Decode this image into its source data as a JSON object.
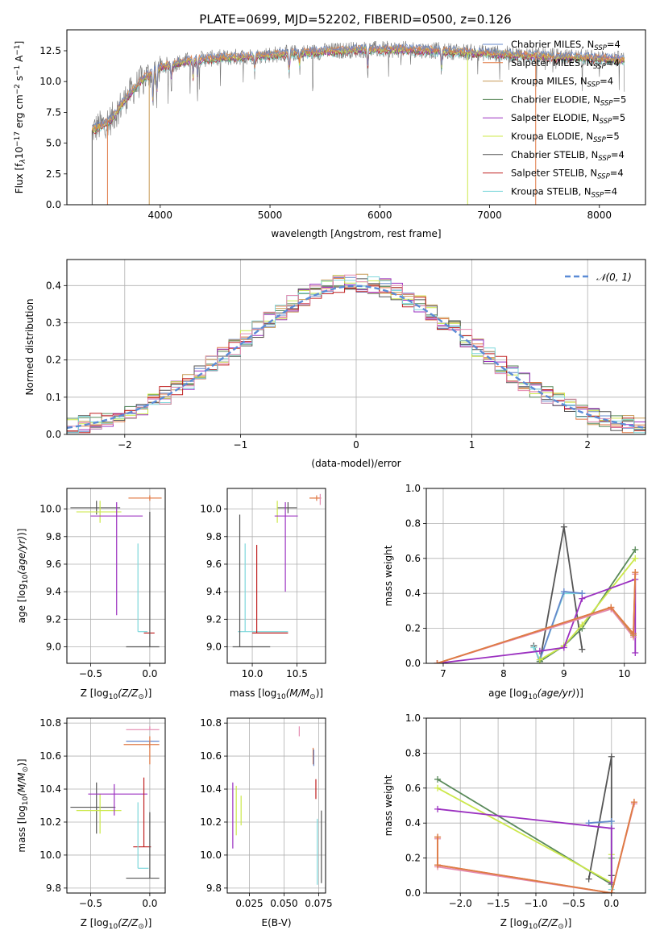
{
  "figure": {
    "title": "PLATE=0699, MJD=52202, FIBERID=0500, z=0.126",
    "colors": {
      "Chabrier MILES": "#6688cc",
      "Salpeter MILES": "#e07a45",
      "Kroupa MILES": "#c79a55",
      "Chabrier ELODIE": "#5a8a5a",
      "Salpeter ELODIE": "#9b30c0",
      "Kroupa ELODIE": "#cce84a",
      "Chabrier STELIB": "#555555",
      "Salpeter STELIB": "#c02020",
      "Kroupa STELIB": "#7fd8dc"
    }
  },
  "chart_data": [
    {
      "id": "spectrum",
      "type": "line",
      "xlabel": "wavelength [Angstrom, rest frame]",
      "ylabel_main": "Flux [f",
      "ylabel_sub": "λ",
      "ylabel_10": "10",
      "ylabel_exp1": "−17",
      "ylabel_unit": " erg cm",
      "ylabel_exp2": "−2",
      "ylabel_s": " s",
      "ylabel_exp3": "−1",
      "ylabel_A": " A",
      "ylabel_exp4": "−1",
      "ylabel_close": "]",
      "xlim": [
        3150,
        8420
      ],
      "ylim": [
        0,
        14.2
      ],
      "xticks": [
        "4000",
        "5000",
        "6000",
        "7000",
        "8000"
      ],
      "yticks": [
        "0.0",
        "2.5",
        "5.0",
        "7.5",
        "10.0",
        "12.5"
      ],
      "legend": [
        {
          "pre": "Chabrier MILES, N",
          "sub": "SSP",
          "post": "=4",
          "color": "#6688cc"
        },
        {
          "pre": "Salpeter MILES, N",
          "sub": "SSP",
          "post": "=4",
          "color": "#e07a45"
        },
        {
          "pre": "Kroupa MILES, N",
          "sub": "SSP",
          "post": "=4",
          "color": "#c79a55"
        },
        {
          "pre": "Chabrier ELODIE, N",
          "sub": "SSP",
          "post": "=5",
          "color": "#5a8a5a"
        },
        {
          "pre": "Salpeter ELODIE, N",
          "sub": "SSP",
          "post": "=5",
          "color": "#9b30c0"
        },
        {
          "pre": "Kroupa ELODIE, N",
          "sub": "SSP",
          "post": "=5",
          "color": "#cce84a"
        },
        {
          "pre": "Chabrier STELIB, N",
          "sub": "SSP",
          "post": "=4",
          "color": "#555555"
        },
        {
          "pre": "Salpeter STELIB, N",
          "sub": "SSP",
          "post": "=4",
          "color": "#c02020"
        },
        {
          "pre": "Kroupa STELIB, N",
          "sub": "SSP",
          "post": "=4",
          "color": "#7fd8dc"
        }
      ],
      "continuum": [
        [
          3350,
          5.9
        ],
        [
          3550,
          6.9
        ],
        [
          3700,
          8.8
        ],
        [
          3850,
          10.3
        ],
        [
          4000,
          11.2
        ],
        [
          4300,
          11.8
        ],
        [
          4700,
          12.0
        ],
        [
          5200,
          12.3
        ],
        [
          5800,
          12.6
        ],
        [
          6300,
          12.6
        ],
        [
          6800,
          12.4
        ],
        [
          7400,
          12.1
        ],
        [
          8000,
          11.9
        ],
        [
          8200,
          11.8
        ]
      ],
      "absorptions": [
        [
          3934,
          3.5
        ],
        [
          3969,
          3.0
        ],
        [
          4102,
          1.8
        ],
        [
          4300,
          2.0
        ],
        [
          4340,
          1.8
        ],
        [
          4861,
          1.5
        ],
        [
          5175,
          2.2
        ],
        [
          5270,
          1.3
        ],
        [
          5890,
          2.0
        ],
        [
          6563,
          1.8
        ],
        [
          7600,
          0.5
        ]
      ],
      "cutoffs": [
        {
          "x": 3380,
          "color": "#555555"
        },
        {
          "x": 3520,
          "color": "#e07a45"
        },
        {
          "x": 3900,
          "color": "#c79a55"
        },
        {
          "x": 6800,
          "color": "#cce84a"
        },
        {
          "x": 7420,
          "color": "#e07a45"
        }
      ]
    },
    {
      "id": "residuals",
      "type": "step",
      "xlabel": "(data-model)/error",
      "ylabel": "Normed distribution",
      "xlim": [
        -2.5,
        2.5
      ],
      "ylim": [
        0,
        0.47
      ],
      "xticks": [
        "−2",
        "−1",
        "0",
        "1",
        "2"
      ],
      "yticks": [
        "0.0",
        "0.1",
        "0.2",
        "0.3",
        "0.4"
      ],
      "legend_label": "𝒩(0, 1)",
      "legend_color": "#5b8bd6",
      "bin_width": 0.1
    },
    {
      "id": "age_vs_z",
      "type": "scatter",
      "xlabel_pre": "Z [log",
      "xlabel_sub": "10",
      "xlabel_post": "(Z/Z",
      "xlabel_sun": "⊙",
      "xlabel_close": ")]",
      "ylabel": "age  [log10(age/yr)]",
      "xlim": [
        -0.7,
        0.13
      ],
      "ylim": [
        8.88,
        10.15
      ],
      "xticks": [
        "−0.5",
        "0.0"
      ],
      "yticks": [
        "9.0",
        "9.2",
        "9.4",
        "9.6",
        "9.8",
        "10.0"
      ],
      "points": [
        {
          "x": 0.0,
          "y": 10.08,
          "ex": [
            0.18,
            0.1
          ],
          "ey": [
            0.02,
            0.02
          ],
          "c": "#e07a45"
        },
        {
          "x": -0.45,
          "y": 10.01,
          "ex": [
            0.22,
            0.2
          ],
          "ey": [
            0.05,
            0.05
          ],
          "c": "#555555"
        },
        {
          "x": -0.42,
          "y": 9.98,
          "ex": [
            0.2,
            0.18
          ],
          "ey": [
            0.08,
            0.08
          ],
          "c": "#cce84a"
        },
        {
          "x": -0.28,
          "y": 9.95,
          "ex": [
            0.22,
            0.22
          ],
          "ey": [
            0.72,
            0.1
          ],
          "c": "#9b30c0"
        },
        {
          "x": -0.1,
          "y": 9.11,
          "ex": [
            0.0,
            0.08
          ],
          "ey": [
            0.0,
            0.64
          ],
          "c": "#7fd8dc"
        },
        {
          "x": -0.05,
          "y": 9.1,
          "ex": [
            0.0,
            0.09
          ],
          "ey": [
            0.0,
            0.0
          ],
          "c": "#c02020"
        },
        {
          "x": 0.0,
          "y": 9.0,
          "ex": [
            0.2,
            0.08
          ],
          "ey": [
            0.0,
            0.98
          ],
          "c": "#555555"
        }
      ]
    },
    {
      "id": "age_vs_mass",
      "type": "scatter",
      "xlabel_pre": "mass [log",
      "xlabel_sub": "10",
      "xlabel_post": "(M/M",
      "xlabel_sun": "⊙",
      "xlabel_close": ")]",
      "ylabel": "",
      "xlim": [
        9.72,
        10.82
      ],
      "ylim": [
        8.88,
        10.15
      ],
      "xticks": [
        "10.0",
        "10.5"
      ],
      "yticks": [
        "9.0",
        "9.2",
        "9.4",
        "9.6",
        "9.8",
        "10.0"
      ],
      "points": [
        {
          "x": 10.72,
          "y": 10.08,
          "ex": [
            0.08,
            0.05
          ],
          "ey": [
            0.02,
            0.02
          ],
          "c": "#e07a45"
        },
        {
          "x": 10.76,
          "y": 10.07,
          "ex": [
            0.0,
            0.0
          ],
          "ey": [
            0.04,
            0.04
          ],
          "c": "#e58ab0"
        },
        {
          "x": 10.4,
          "y": 10.01,
          "ex": [
            0.12,
            0.1
          ],
          "ey": [
            0.04,
            0.04
          ],
          "c": "#555555"
        },
        {
          "x": 10.28,
          "y": 10.0,
          "ex": [
            0.0,
            0.0
          ],
          "ey": [
            0.1,
            0.06
          ],
          "c": "#cce84a"
        },
        {
          "x": 10.37,
          "y": 9.95,
          "ex": [
            0.12,
            0.14
          ],
          "ey": [
            0.55,
            0.1
          ],
          "c": "#9b30c0"
        },
        {
          "x": 9.92,
          "y": 9.11,
          "ex": [
            0.08,
            0.48
          ],
          "ey": [
            0.0,
            0.64
          ],
          "c": "#7fd8dc"
        },
        {
          "x": 10.05,
          "y": 9.1,
          "ex": [
            0.05,
            0.35
          ],
          "ey": [
            0.0,
            0.64
          ],
          "c": "#c02020"
        },
        {
          "x": 9.86,
          "y": 9.0,
          "ex": [
            0.08,
            0.34
          ],
          "ey": [
            0.0,
            0.96
          ],
          "c": "#555555"
        }
      ]
    },
    {
      "id": "weight_vs_age",
      "type": "line",
      "xlabel": "age  [log10(age/yr)]",
      "ylabel": "mass weight",
      "xlim": [
        6.72,
        10.35
      ],
      "ylim": [
        0,
        1.0
      ],
      "xticks": [
        "7",
        "8",
        "9",
        "10"
      ],
      "yticks": [
        "0.0",
        "0.2",
        "0.4",
        "0.6",
        "0.8",
        "1.0"
      ],
      "series": [
        {
          "c": "#555555",
          "x": [
            8.5,
            8.6,
            9.0,
            9.3
          ],
          "y": [
            0.1,
            0.01,
            0.78,
            0.08
          ]
        },
        {
          "c": "#7fd8dc",
          "x": [
            8.5,
            8.6,
            9.0,
            9.3
          ],
          "y": [
            0.09,
            0.02,
            0.4,
            0.4
          ]
        },
        {
          "c": "#6688cc",
          "x": [
            8.6,
            9.0,
            9.3
          ],
          "y": [
            0.02,
            0.41,
            0.4
          ]
        },
        {
          "c": "#5a8a5a",
          "x": [
            8.6,
            9.0,
            9.3,
            10.18
          ],
          "y": [
            0.01,
            0.1,
            0.2,
            0.65
          ]
        },
        {
          "c": "#cce84a",
          "x": [
            8.6,
            9.0,
            9.3,
            10.18
          ],
          "y": [
            0.02,
            0.1,
            0.22,
            0.6
          ]
        },
        {
          "c": "#9b30c0",
          "x": [
            6.9,
            8.6,
            9.0,
            9.3,
            10.18,
            10.18
          ],
          "y": [
            0.0,
            0.07,
            0.09,
            0.37,
            0.48,
            0.06
          ]
        },
        {
          "c": "#e58ab0",
          "x": [
            6.9,
            9.78,
            10.15,
            10.18
          ],
          "y": [
            0.0,
            0.31,
            0.15,
            0.51
          ]
        },
        {
          "c": "#c79a55",
          "x": [
            6.9,
            9.78,
            10.15,
            10.18
          ],
          "y": [
            0.0,
            0.32,
            0.16,
            0.52
          ]
        },
        {
          "c": "#e07a45",
          "x": [
            6.9,
            9.78,
            10.15,
            10.18
          ],
          "y": [
            0.0,
            0.32,
            0.17,
            0.52
          ]
        }
      ]
    },
    {
      "id": "mass_vs_z",
      "type": "scatter",
      "xlabel_pre": "Z [log",
      "xlabel_sub": "10",
      "xlabel_post": "(Z/Z",
      "xlabel_sun": "⊙",
      "xlabel_close": ")]",
      "ylabel": "mass [log10(M/M⊙)]",
      "xlim": [
        -0.7,
        0.13
      ],
      "ylim": [
        9.77,
        10.83
      ],
      "xticks": [
        "−0.5",
        "0.0"
      ],
      "yticks": [
        "9.8",
        "10.0",
        "10.2",
        "10.4",
        "10.6",
        "10.8"
      ],
      "points": [
        {
          "x": 0.0,
          "y": 10.76,
          "ex": [
            0.2,
            0.08
          ],
          "ey": [
            0.0,
            0.02
          ],
          "c": "#e58ab0"
        },
        {
          "x": 0.0,
          "y": 10.69,
          "ex": [
            0.2,
            0.08
          ],
          "ey": [
            0.04,
            0.0
          ],
          "c": "#6688cc"
        },
        {
          "x": 0.0,
          "y": 10.67,
          "ex": [
            0.22,
            0.08
          ],
          "ey": [
            0.12,
            0.05
          ],
          "c": "#e07a45"
        },
        {
          "x": -0.45,
          "y": 10.29,
          "ex": [
            0.22,
            0.16
          ],
          "ey": [
            0.16,
            0.15
          ],
          "c": "#555555"
        },
        {
          "x": -0.42,
          "y": 10.27,
          "ex": [
            0.2,
            0.18
          ],
          "ey": [
            0.14,
            0.1
          ],
          "c": "#cce84a"
        },
        {
          "x": -0.3,
          "y": 10.37,
          "ex": [
            0.22,
            0.28
          ],
          "ey": [
            0.13,
            0.06
          ],
          "c": "#9b30c0"
        },
        {
          "x": -0.05,
          "y": 10.05,
          "ex": [
            0.09,
            0.06
          ],
          "ey": [
            0.0,
            0.42
          ],
          "c": "#c02020"
        },
        {
          "x": -0.1,
          "y": 9.92,
          "ex": [
            0.0,
            0.09
          ],
          "ey": [
            0.0,
            0.4
          ],
          "c": "#7fd8dc"
        },
        {
          "x": 0.0,
          "y": 9.86,
          "ex": [
            0.2,
            0.08
          ],
          "ey": [
            0.0,
            0.4
          ],
          "c": "#555555"
        }
      ]
    },
    {
      "id": "mass_vs_ebv",
      "type": "scatter",
      "xlabel": "E(B-V)",
      "ylabel": "",
      "xlim": [
        0.009,
        0.08
      ],
      "ylim": [
        9.77,
        10.83
      ],
      "xticks": [
        "0.025",
        "0.050",
        "0.075"
      ],
      "yticks": [
        "9.8",
        "10.0",
        "10.2",
        "10.4",
        "10.6",
        "10.8"
      ],
      "points": [
        {
          "x": 0.061,
          "y": 10.75,
          "ex": [
            0,
            0
          ],
          "ey": [
            0.03,
            0.03
          ],
          "c": "#e58ab0"
        },
        {
          "x": 0.071,
          "y": 10.6,
          "ex": [
            0,
            0
          ],
          "ey": [
            0.05,
            0.05
          ],
          "c": "#e07a45"
        },
        {
          "x": 0.0715,
          "y": 10.6,
          "ex": [
            0,
            0
          ],
          "ey": [
            0.06,
            0.04
          ],
          "c": "#6688cc"
        },
        {
          "x": 0.073,
          "y": 10.4,
          "ex": [
            0,
            0
          ],
          "ey": [
            0.06,
            0.06
          ],
          "c": "#c02020"
        },
        {
          "x": 0.074,
          "y": 10.02,
          "ex": [
            0,
            0
          ],
          "ey": [
            0.2,
            0.2
          ],
          "c": "#7fd8dc"
        },
        {
          "x": 0.077,
          "y": 10.05,
          "ex": [
            0,
            0
          ],
          "ey": [
            0.22,
            0.22
          ],
          "c": "#555555"
        },
        {
          "x": 0.013,
          "y": 10.24,
          "ex": [
            0,
            0
          ],
          "ey": [
            0.2,
            0.2
          ],
          "c": "#9b30c0"
        },
        {
          "x": 0.0155,
          "y": 10.27,
          "ex": [
            0,
            0
          ],
          "ey": [
            0.15,
            0.15
          ],
          "c": "#cce84a"
        },
        {
          "x": 0.019,
          "y": 10.27,
          "ex": [
            0,
            0
          ],
          "ey": [
            0.09,
            0.09
          ],
          "c": "#cce84a"
        }
      ]
    },
    {
      "id": "weight_vs_z",
      "type": "line",
      "xlabel_pre": "Z [log",
      "xlabel_sub": "10",
      "xlabel_post": "(Z/Z",
      "xlabel_sun": "⊙",
      "xlabel_close": ")]",
      "ylabel": "mass weight",
      "xlim": [
        -2.45,
        0.45
      ],
      "ylim": [
        0,
        1.0
      ],
      "xticks": [
        "−2.0",
        "−1.5",
        "−1.0",
        "−0.5",
        "0.0"
      ],
      "yticks": [
        "0.0",
        "0.2",
        "0.4",
        "0.6",
        "0.8",
        "1.0"
      ],
      "series": [
        {
          "c": "#555555",
          "x": [
            -0.3,
            0.0,
            0.0
          ],
          "y": [
            0.08,
            0.78,
            0.1
          ]
        },
        {
          "c": "#7fd8dc",
          "x": [
            -0.3,
            0.0,
            0.0
          ],
          "y": [
            0.4,
            0.41,
            0.02
          ]
        },
        {
          "c": "#6688cc",
          "x": [
            -0.3,
            0.0
          ],
          "y": [
            0.4,
            0.41
          ]
        },
        {
          "c": "#5a8a5a",
          "x": [
            -2.3,
            0.0,
            0.0
          ],
          "y": [
            0.65,
            0.05,
            0.2
          ]
        },
        {
          "c": "#cce84a",
          "x": [
            -2.3,
            0.0,
            0.0
          ],
          "y": [
            0.6,
            0.06,
            0.22
          ]
        },
        {
          "c": "#9b30c0",
          "x": [
            -2.3,
            0.0,
            0.0
          ],
          "y": [
            0.48,
            0.37,
            0.06
          ]
        },
        {
          "c": "#e58ab0",
          "x": [
            -2.3,
            -2.3,
            0.0,
            0.3
          ],
          "y": [
            0.31,
            0.15,
            0.0,
            0.51
          ]
        },
        {
          "c": "#c79a55",
          "x": [
            -2.3,
            -2.3,
            0.0,
            0.3
          ],
          "y": [
            0.32,
            0.16,
            0.0,
            0.52
          ]
        },
        {
          "c": "#e07a45",
          "x": [
            -2.3,
            -2.3,
            0.0,
            0.3
          ],
          "y": [
            0.32,
            0.16,
            0.0,
            0.52
          ]
        }
      ]
    }
  ]
}
